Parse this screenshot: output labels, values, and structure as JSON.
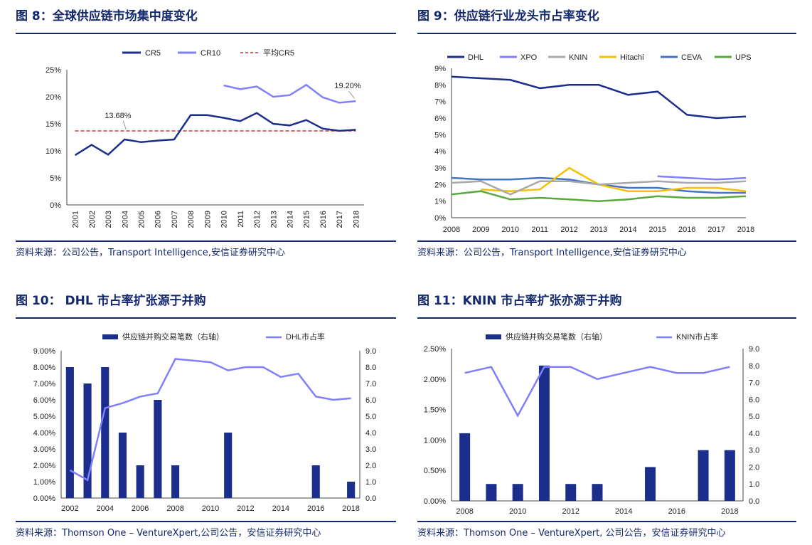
{
  "panels": [
    {
      "title": "图 8：全球供应链市场集中度变化",
      "source": "资料来源：公司公告，Transport Intelligence,安信证券研究中心"
    },
    {
      "title": "图 9：供应链行业龙头市占率变化",
      "source": "资料来源：公司公告，Transport Intelligence,安信证券研究中心"
    },
    {
      "title": "图 10： DHL 市占率扩张源于并购",
      "source": "资料来源：Thomson One – VentureXpert,公司公告，安信证券研究中心"
    },
    {
      "title": "图 11：KNIN 市占率扩张亦源于并购",
      "source": "资料来源：Thomson One – VentureXpert, 公司公告，安信证券研究中心"
    }
  ],
  "colors": {
    "navy": "#1b2e8c",
    "light_purple": "#7f7fff",
    "dashed_red": "#d03030",
    "knin_gray": "#a9a9a9",
    "hitachi_yellow": "#f5c000",
    "ceva_blue": "#4472c4",
    "ups_green": "#5aa83c",
    "rule": "#14286e"
  },
  "chart_data": [
    {
      "type": "line",
      "title": "",
      "x": [
        "2001",
        "2002",
        "2003",
        "2004",
        "2005",
        "2006",
        "2007",
        "2008",
        "2009",
        "2010",
        "2011",
        "2012",
        "2013",
        "2014",
        "2015",
        "2016",
        "2017",
        "2018"
      ],
      "series": [
        {
          "name": "CR5",
          "values": [
            9.2,
            11.1,
            9.3,
            12.1,
            11.6,
            11.9,
            12.1,
            16.6,
            16.6,
            16.1,
            15.5,
            17.0,
            15.0,
            14.7,
            15.7,
            14.1,
            13.7,
            13.9
          ]
        },
        {
          "name": "CR10",
          "values": [
            null,
            null,
            null,
            null,
            null,
            null,
            null,
            null,
            null,
            22.1,
            21.4,
            21.9,
            20.0,
            20.3,
            22.2,
            19.9,
            18.9,
            19.2
          ]
        },
        {
          "name": "平均CR5",
          "values": [
            13.68,
            13.68,
            13.68,
            13.68,
            13.68,
            13.68,
            13.68,
            13.68,
            13.68,
            13.68,
            13.68,
            13.68,
            13.68,
            13.68,
            13.68,
            13.68,
            13.68,
            13.68
          ]
        }
      ],
      "y_ticks": [
        "0%",
        "5%",
        "10%",
        "15%",
        "20%",
        "25%"
      ],
      "ylim": [
        0,
        25
      ],
      "annotations": [
        {
          "text": "13.68%",
          "x": "2004",
          "y": 13.68
        },
        {
          "text": "19.20%",
          "x": "2018",
          "y": 19.2
        }
      ],
      "legend": "top"
    },
    {
      "type": "line",
      "title": "",
      "x": [
        "2008",
        "2009",
        "2010",
        "2011",
        "2012",
        "2013",
        "2014",
        "2015",
        "2016",
        "2017",
        "2018"
      ],
      "series": [
        {
          "name": "DHL",
          "values": [
            8.5,
            8.4,
            8.3,
            7.8,
            8.0,
            8.0,
            7.4,
            7.6,
            6.2,
            6.0,
            6.1
          ]
        },
        {
          "name": "XPO",
          "values": [
            null,
            null,
            null,
            null,
            null,
            null,
            null,
            2.5,
            2.4,
            2.3,
            2.4
          ]
        },
        {
          "name": "KNIN",
          "values": [
            2.1,
            2.2,
            1.4,
            2.2,
            2.2,
            2.0,
            2.1,
            2.2,
            2.1,
            2.1,
            2.2
          ]
        },
        {
          "name": "Hitachi",
          "values": [
            null,
            1.7,
            1.6,
            1.7,
            3.0,
            2.0,
            1.6,
            1.6,
            1.8,
            1.8,
            1.6
          ]
        },
        {
          "name": "CEVA",
          "values": [
            2.4,
            2.3,
            2.3,
            2.4,
            2.3,
            2.0,
            1.8,
            1.8,
            1.6,
            1.5,
            1.5
          ]
        },
        {
          "name": "UPS",
          "values": [
            1.4,
            1.6,
            1.1,
            1.2,
            1.1,
            1.0,
            1.1,
            1.3,
            1.2,
            1.2,
            1.3
          ]
        }
      ],
      "y_ticks": [
        "0%",
        "1%",
        "2%",
        "3%",
        "4%",
        "5%",
        "6%",
        "7%",
        "8%",
        "9%"
      ],
      "ylim": [
        0,
        9
      ],
      "legend": "top"
    },
    {
      "type": "bar",
      "title": "",
      "x": [
        "2002",
        "2003",
        "2004",
        "2005",
        "2006",
        "2007",
        "2008",
        "2009",
        "2010",
        "2011",
        "2012",
        "2013",
        "2014",
        "2015",
        "2016",
        "2017",
        "2018"
      ],
      "x_tick_labels": [
        "2002",
        "2004",
        "2006",
        "2008",
        "2010",
        "2012",
        "2014",
        "2016",
        "2018"
      ],
      "series": [
        {
          "name": "供应链并购交易笔数（右轴）",
          "type": "bar",
          "axis": "right",
          "values": [
            8,
            7,
            8,
            4,
            2,
            6,
            2,
            0,
            0,
            4,
            0,
            0,
            0,
            0,
            2,
            0,
            1
          ]
        },
        {
          "name": "DHL市占率",
          "type": "line",
          "axis": "left",
          "values": [
            1.7,
            1.1,
            5.5,
            5.8,
            6.2,
            6.4,
            8.5,
            8.4,
            8.3,
            7.8,
            8.0,
            8.0,
            7.4,
            7.6,
            6.2,
            6.0,
            6.1
          ]
        }
      ],
      "y_left_ticks": [
        "0.00%",
        "1.00%",
        "2.00%",
        "3.00%",
        "4.00%",
        "5.00%",
        "6.00%",
        "7.00%",
        "8.00%",
        "9.00%"
      ],
      "y_right_ticks": [
        "0.0",
        "1.0",
        "2.0",
        "3.0",
        "4.0",
        "5.0",
        "6.0",
        "7.0",
        "8.0",
        "9.0"
      ],
      "ylim_left": [
        0,
        9
      ],
      "ylim_right": [
        0,
        9
      ],
      "legend": "top"
    },
    {
      "type": "bar",
      "title": "",
      "x": [
        "2008",
        "2009",
        "2010",
        "2011",
        "2012",
        "2013",
        "2014",
        "2015",
        "2016",
        "2017",
        "2018"
      ],
      "x_tick_labels": [
        "2008",
        "2010",
        "2012",
        "2014",
        "2016",
        "2018"
      ],
      "series": [
        {
          "name": "供应链并购交易笔数（右轴）",
          "type": "bar",
          "axis": "right",
          "values": [
            4,
            1,
            1,
            8,
            1,
            1,
            0,
            2,
            0,
            3,
            3
          ]
        },
        {
          "name": "KNIN市占率",
          "type": "line",
          "axis": "left",
          "values": [
            2.1,
            2.2,
            1.4,
            2.2,
            2.2,
            2.0,
            2.1,
            2.2,
            2.1,
            2.1,
            2.2
          ]
        }
      ],
      "y_left_ticks": [
        "0.00%",
        "0.50%",
        "1.00%",
        "1.50%",
        "2.00%",
        "2.50%"
      ],
      "y_right_ticks": [
        "0.0",
        "1.0",
        "2.0",
        "3.0",
        "4.0",
        "5.0",
        "6.0",
        "7.0",
        "8.0",
        "9.0"
      ],
      "ylim_left": [
        0,
        2.5
      ],
      "ylim_right": [
        0,
        9
      ],
      "legend": "top"
    }
  ]
}
